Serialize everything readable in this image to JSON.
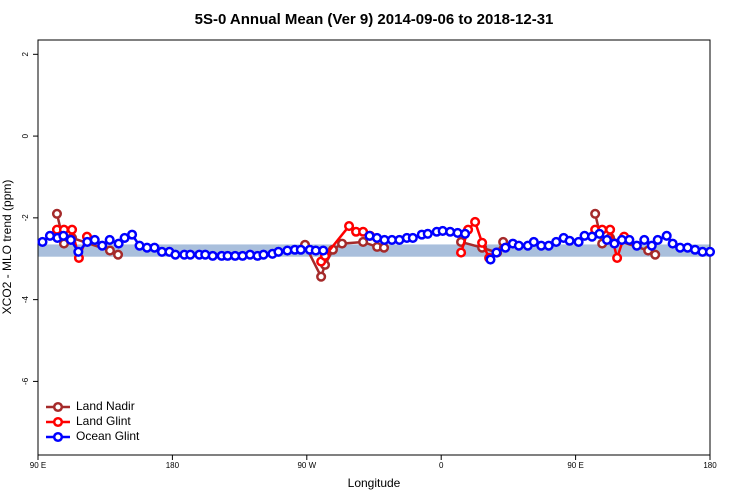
{
  "chart_data": {
    "type": "line",
    "title": "5S-0 Annual Mean (Ver 9)   2014-09-06 to 2018-12-31",
    "x_label": "Longitude",
    "y_label": "XCO2 - MLO trend (ppm)",
    "xlim": [
      90,
      540
    ],
    "ylim": [
      -7.8,
      2.35
    ],
    "xticks": [
      {
        "value": 90,
        "label": "90 E"
      },
      180,
      {
        "value": 270,
        "label": "90 W"
      },
      {
        "value": 360,
        "label": "0"
      },
      {
        "value": 450,
        "label": "90 E"
      },
      {
        "value": 540,
        "label": "180"
      }
    ],
    "yticks": [
      2,
      0,
      -2,
      -4,
      -6
    ],
    "band": [
      -2.95,
      -2.65
    ],
    "band_color": "#a9bfdc",
    "legend": "bottom-left",
    "series": [
      {
        "name": "Land Nadir",
        "color": "#a52a2a",
        "x": [
          102.7,
          107.4,
          112.8,
          138.2,
          143.6,
          200,
          268.8,
          279.6,
          282.2,
          287.5,
          293.6,
          307.7,
          317.1,
          321.7,
          340,
          373.3,
          387.4,
          397.4,
          401.5,
          430,
          463.1,
          467.8,
          473.1,
          498.6,
          503.3
        ],
        "values": [
          -1.9,
          -2.63,
          -2.49,
          -2.8,
          -2.9,
          null,
          -2.66,
          -3.44,
          -3.15,
          -2.78,
          -2.63,
          -2.59,
          -2.71,
          -2.73,
          null,
          -2.59,
          -2.73,
          -2.85,
          -2.59,
          null,
          -1.9,
          -2.63,
          -2.49,
          -2.8,
          -2.9
        ]
      },
      {
        "name": "Land Glint",
        "color": "#ff0000",
        "x": [
          102.7,
          107.4,
          112.8,
          117.4,
          122.8,
          200,
          279.6,
          282.2,
          298.3,
          303.0,
          307.7,
          312.4,
          340,
          373.3,
          378.0,
          382.7,
          387.4,
          392.1,
          430,
          463.1,
          467.8,
          473.1,
          477.8,
          482.5
        ],
        "values": [
          -2.29,
          -2.29,
          -2.29,
          -2.98,
          -2.46,
          null,
          -3.07,
          -2.93,
          -2.2,
          -2.34,
          -2.34,
          -2.44,
          null,
          -2.85,
          -2.29,
          -2.1,
          -2.61,
          -2.98,
          null,
          -2.29,
          -2.29,
          -2.29,
          -2.98,
          -2.46
        ]
      },
      {
        "name": "Ocean Glint",
        "color": "#0000ff",
        "x": [
          93,
          98,
          103,
          107,
          112,
          117,
          123,
          128,
          133,
          138,
          144,
          148,
          153,
          158,
          163,
          168,
          173,
          178,
          182,
          188,
          192,
          198,
          202,
          207,
          213,
          217,
          222,
          227,
          232,
          237,
          241,
          247,
          251,
          257,
          262,
          266,
          272,
          276,
          281,
          296,
          312,
          317,
          322,
          327,
          332,
          337,
          341,
          347,
          351,
          357,
          361,
          366,
          371,
          376,
          385,
          393,
          397,
          403,
          408,
          412,
          418,
          422,
          427,
          432,
          437,
          442,
          446,
          452,
          456,
          461,
          466,
          471,
          476,
          481,
          486,
          491,
          496,
          501,
          505,
          511,
          515,
          520,
          525,
          530,
          535,
          540
        ],
        "values": [
          -2.59,
          -2.44,
          -2.49,
          -2.44,
          -2.54,
          -2.83,
          -2.59,
          -2.54,
          -2.68,
          -2.54,
          -2.63,
          -2.49,
          -2.41,
          -2.68,
          -2.73,
          -2.73,
          -2.83,
          -2.83,
          -2.9,
          -2.9,
          -2.9,
          -2.9,
          -2.9,
          -2.93,
          -2.93,
          -2.93,
          -2.93,
          -2.93,
          -2.9,
          -2.93,
          -2.9,
          -2.88,
          -2.83,
          -2.8,
          -2.78,
          -2.78,
          -2.78,
          -2.8,
          -2.8,
          null,
          -2.44,
          -2.49,
          -2.54,
          -2.54,
          -2.54,
          -2.49,
          -2.49,
          -2.41,
          -2.39,
          -2.34,
          -2.32,
          -2.34,
          -2.37,
          -2.39,
          null,
          -3.02,
          -2.85,
          -2.73,
          -2.63,
          -2.68,
          -2.68,
          -2.59,
          -2.68,
          -2.68,
          -2.59,
          -2.49,
          -2.56,
          -2.59,
          -2.44,
          -2.46,
          -2.39,
          -2.54,
          -2.63,
          -2.54,
          -2.54,
          -2.68,
          -2.54,
          -2.68,
          -2.54,
          -2.44,
          -2.63,
          -2.73,
          -2.73,
          -2.78,
          -2.83,
          -2.83
        ]
      }
    ]
  }
}
